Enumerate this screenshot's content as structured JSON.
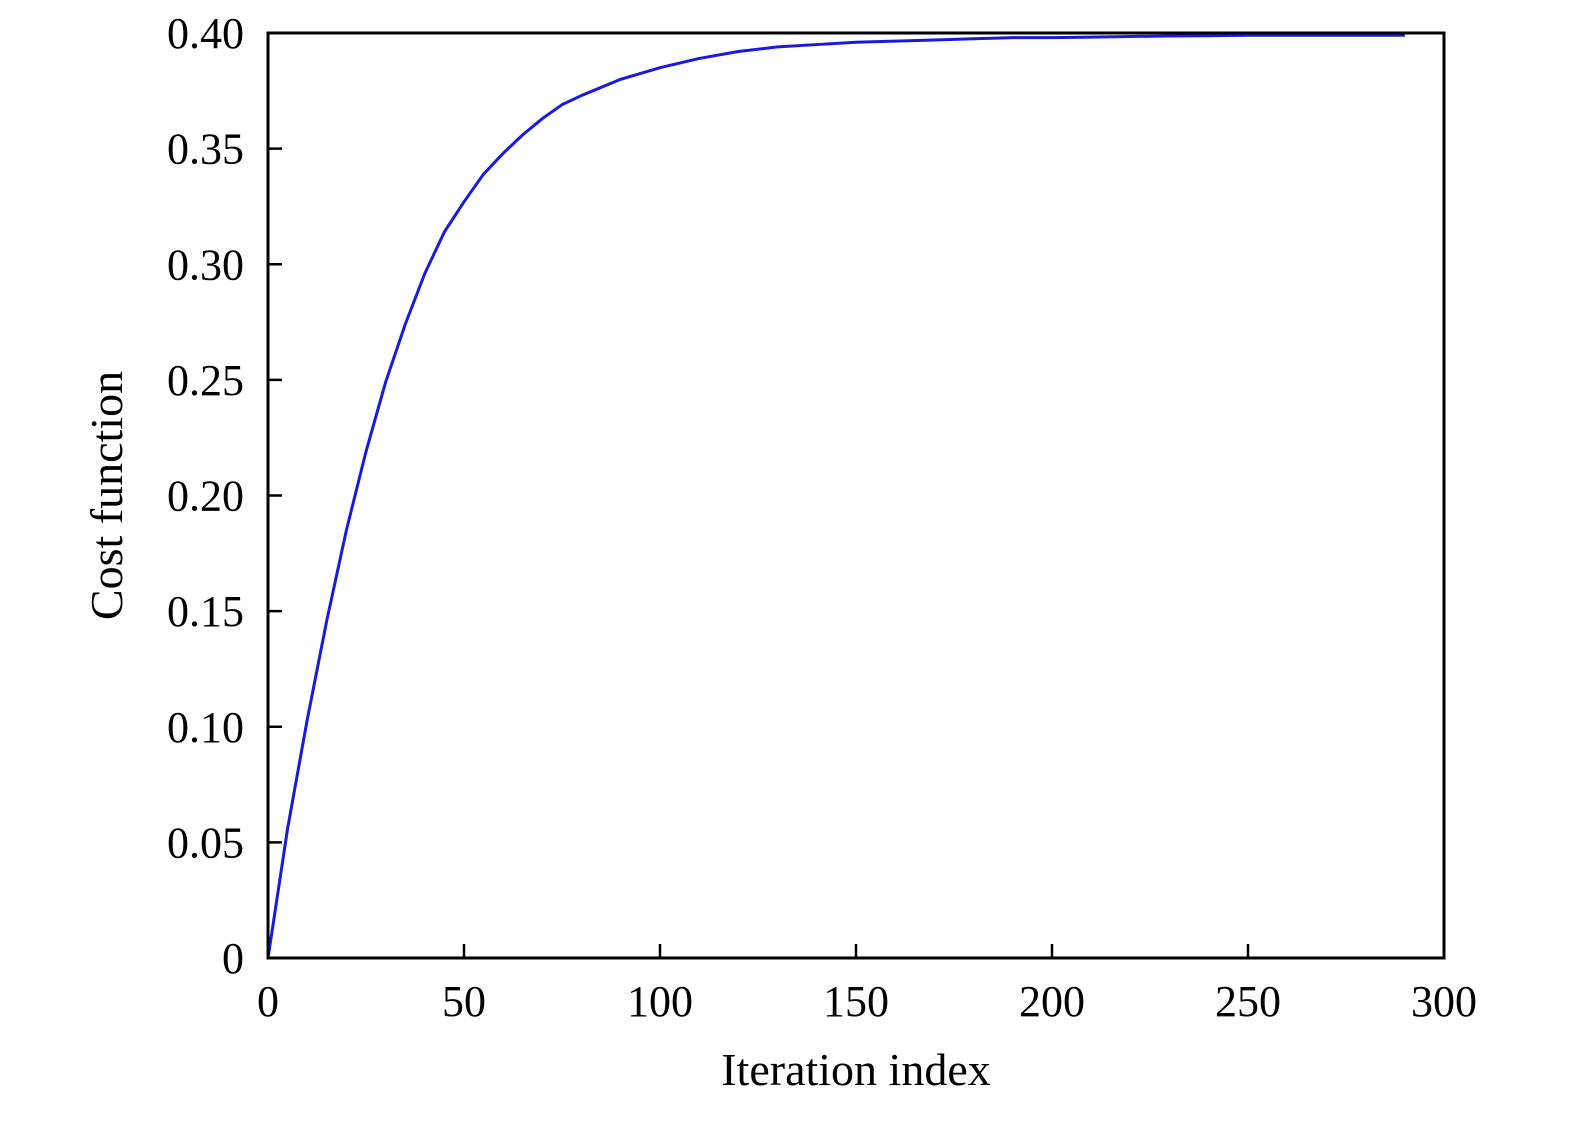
{
  "chart_data": {
    "type": "line",
    "title": "",
    "xlabel": "Iteration index",
    "ylabel": "Cost function",
    "xlim": [
      0,
      300
    ],
    "ylim": [
      0,
      0.4
    ],
    "xticks": [
      0,
      50,
      100,
      150,
      200,
      250,
      300
    ],
    "xtick_labels": [
      "0",
      "50",
      "100",
      "150",
      "200",
      "250",
      "300"
    ],
    "yticks": [
      0,
      0.05,
      0.1,
      0.15,
      0.2,
      0.25,
      0.3,
      0.35,
      0.4
    ],
    "ytick_labels": [
      "0",
      "0.05",
      "0.10",
      "0.15",
      "0.20",
      "0.25",
      "0.30",
      "0.35",
      "0.40"
    ],
    "grid": false,
    "legend": "none",
    "series": [
      {
        "color": "#1a1adc",
        "x": [
          0,
          5,
          10,
          15,
          20,
          25,
          30,
          35,
          40,
          45,
          50,
          55,
          60,
          65,
          70,
          75,
          80,
          90,
          100,
          110,
          120,
          130,
          140,
          150,
          160,
          170,
          180,
          190,
          200,
          210,
          220,
          230,
          240,
          250,
          260,
          270,
          280,
          290
        ],
        "y": [
          0,
          0.056,
          0.103,
          0.146,
          0.185,
          0.219,
          0.249,
          0.274,
          0.296,
          0.314,
          0.327,
          0.339,
          0.348,
          0.356,
          0.363,
          0.369,
          0.373,
          0.38,
          0.385,
          0.389,
          0.392,
          0.394,
          0.395,
          0.396,
          0.3965,
          0.397,
          0.3975,
          0.398,
          0.398,
          0.3982,
          0.3985,
          0.3987,
          0.3988,
          0.399,
          0.399,
          0.399,
          0.399,
          0.399
        ]
      }
    ]
  }
}
